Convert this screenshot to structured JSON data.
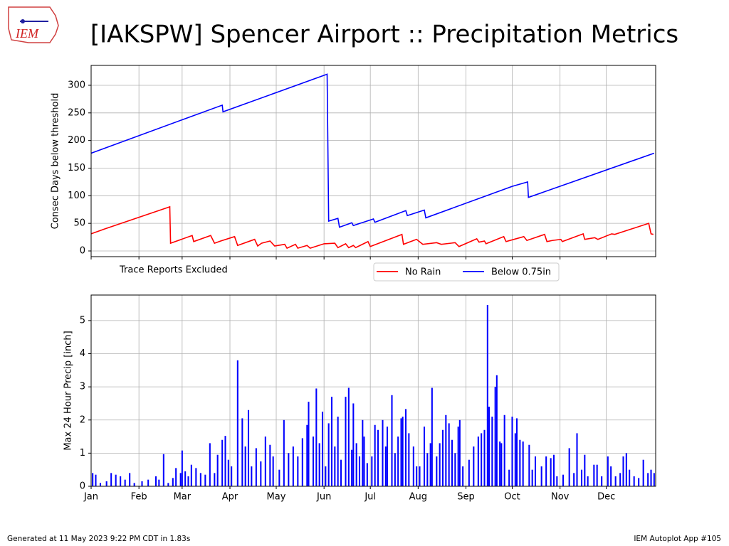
{
  "title": "[IAKSPW] Spencer Airport :: Precipitation Metrics",
  "logo_text": "IEM",
  "footer_left": "Generated at 11 May 2023 9:22 PM CDT in 1.83s",
  "footer_right": "IEM Autoplot App #105",
  "chart_data": [
    {
      "type": "line",
      "ylabel": "Consec Days below threshold",
      "annotation": "Trace Reports Excluded",
      "legend": "below",
      "grid": true,
      "xlim": [
        0,
        366
      ],
      "ylim": [
        -10.3,
        336
      ],
      "xticks": [
        0,
        31,
        59,
        90,
        120,
        151,
        181,
        212,
        243,
        273,
        304,
        334
      ],
      "yticks": [
        0,
        50,
        100,
        150,
        200,
        250,
        300
      ],
      "series": [
        {
          "name": "No Rain",
          "color": "#ff0000",
          "x": [
            0,
            9,
            49,
            51,
            51.5,
            65.5,
            66.5,
            77.5,
            80,
            84,
            93,
            95,
            106,
            108,
            110.5,
            116,
            119,
            125.5,
            127,
            132.5,
            134,
            140,
            142,
            151,
            158,
            160,
            165,
            167,
            170,
            171.5,
            179.5,
            181,
            201.5,
            202.5,
            211,
            215,
            224,
            227,
            236,
            238.5,
            250,
            251.5,
            255,
            256,
            267.5,
            269,
            280.5,
            282.5,
            294,
            295.5,
            299,
            304.5,
            305.5,
            319,
            320,
            326.5,
            328.5,
            337.5,
            339.5,
            361.5,
            363,
            364.5
          ],
          "values": [
            31,
            40,
            78,
            80,
            14,
            28,
            17,
            28,
            14,
            18,
            26,
            10,
            21,
            9,
            14,
            18,
            9,
            12,
            5,
            12,
            5,
            10,
            5,
            13,
            14,
            6,
            13,
            6,
            10,
            6,
            17,
            8,
            30,
            12,
            21,
            12,
            15,
            12,
            15,
            8,
            22,
            16,
            18,
            13,
            26,
            17,
            26,
            19,
            30,
            17,
            19,
            21,
            17,
            31,
            21,
            24,
            21,
            31,
            30,
            50,
            31,
            30
          ]
        },
        {
          "name": "Below 0.75in",
          "color": "#0000ff",
          "x": [
            0,
            59.5,
            85,
            85.5,
            153,
            154,
            160,
            161,
            169,
            170,
            183,
            184,
            204,
            205,
            216,
            217,
            273,
            283,
            283.5,
            365
          ],
          "values": [
            177,
            238,
            264,
            252,
            320,
            54,
            59,
            43,
            51,
            46,
            58,
            52,
            73,
            64,
            74,
            60,
            117,
            125,
            97,
            177
          ]
        }
      ]
    },
    {
      "type": "bar",
      "ylabel": "Max 24 Hour Precip [inch]",
      "grid": true,
      "color": "#0000ff",
      "xlim": [
        0,
        366
      ],
      "ylim": [
        0,
        5.77
      ],
      "xticks": [
        {
          "value": 0,
          "label": "Jan"
        },
        {
          "value": 31,
          "label": "Feb"
        },
        {
          "value": 59,
          "label": "Mar"
        },
        {
          "value": 90,
          "label": "Apr"
        },
        {
          "value": 120,
          "label": "May"
        },
        {
          "value": 151,
          "label": "Jun"
        },
        {
          "value": 181,
          "label": "Jul"
        },
        {
          "value": 212,
          "label": "Aug"
        },
        {
          "value": 243,
          "label": "Sep"
        },
        {
          "value": 273,
          "label": "Oct"
        },
        {
          "value": 304,
          "label": "Nov"
        },
        {
          "value": 334,
          "label": "Dec"
        }
      ],
      "yticks": [
        0,
        1,
        2,
        3,
        4,
        5
      ],
      "x": [
        1,
        3,
        6,
        10,
        13,
        16,
        19,
        22,
        25,
        28,
        33,
        37,
        42,
        44,
        47,
        50,
        53,
        55,
        58,
        59,
        61,
        63,
        65,
        68,
        71,
        74,
        77,
        80,
        82,
        85,
        87,
        89,
        91,
        95,
        98,
        100,
        102,
        104,
        107,
        110,
        113,
        116,
        118,
        122,
        125,
        128,
        131,
        134,
        137,
        140,
        141,
        144,
        146,
        148,
        150,
        152,
        154,
        156,
        158,
        160,
        162,
        165,
        167,
        169,
        170,
        172,
        174,
        176,
        177,
        179,
        182,
        184,
        186,
        189,
        191,
        192,
        195,
        197,
        199,
        201,
        202,
        204,
        206,
        209,
        211,
        213,
        216,
        218,
        220,
        221,
        224,
        226,
        228,
        230,
        232,
        234,
        236,
        238,
        239,
        241,
        245,
        248,
        251,
        253,
        255,
        257,
        258,
        260,
        262,
        263,
        265,
        266,
        268,
        271,
        273,
        275,
        276,
        278,
        280,
        284,
        286,
        288,
        292,
        295,
        298,
        300,
        302,
        306,
        310,
        313,
        315,
        318,
        320,
        322,
        326,
        328,
        331,
        335,
        337,
        340,
        343,
        345,
        347,
        349,
        352,
        355,
        358,
        361,
        363,
        365
      ],
      "values": [
        0.4,
        0.35,
        0.1,
        0.15,
        0.4,
        0.35,
        0.3,
        0.2,
        0.4,
        0.1,
        0.15,
        0.2,
        0.3,
        0.2,
        0.97,
        0.1,
        0.25,
        0.55,
        0.4,
        1.08,
        0.45,
        0.3,
        0.65,
        0.55,
        0.4,
        0.35,
        1.3,
        0.4,
        0.95,
        1.4,
        1.52,
        0.8,
        0.6,
        3.8,
        2.05,
        1.2,
        2.3,
        0.6,
        1.15,
        0.75,
        1.5,
        1.25,
        0.9,
        0.5,
        2.0,
        1.0,
        1.2,
        0.9,
        1.45,
        1.85,
        2.55,
        1.5,
        2.95,
        1.3,
        2.25,
        0.6,
        1.9,
        2.7,
        1.2,
        2.1,
        0.8,
        2.7,
        2.97,
        1.1,
        2.5,
        1.3,
        0.9,
        2.0,
        1.5,
        0.7,
        0.9,
        1.85,
        1.7,
        2.0,
        1.2,
        1.8,
        2.75,
        1.0,
        1.5,
        2.05,
        2.1,
        2.33,
        1.6,
        1.2,
        0.6,
        0.6,
        1.8,
        1.0,
        1.3,
        2.97,
        0.9,
        1.3,
        1.7,
        2.15,
        1.9,
        1.4,
        1.0,
        1.8,
        2.0,
        0.6,
        0.8,
        1.2,
        1.5,
        1.6,
        1.7,
        5.47,
        2.4,
        2.1,
        3.0,
        3.35,
        1.35,
        1.3,
        2.15,
        0.5,
        2.1,
        1.6,
        2.05,
        1.4,
        1.35,
        1.25,
        0.5,
        0.9,
        0.6,
        0.9,
        0.85,
        0.95,
        0.3,
        0.35,
        1.15,
        0.4,
        1.6,
        0.5,
        0.95,
        0.3,
        0.65,
        0.65,
        0.3,
        0.9,
        0.6,
        0.3,
        0.4,
        0.9,
        1.0,
        0.5,
        0.3,
        0.25,
        0.8,
        0.4,
        0.5,
        0.4
      ]
    }
  ]
}
